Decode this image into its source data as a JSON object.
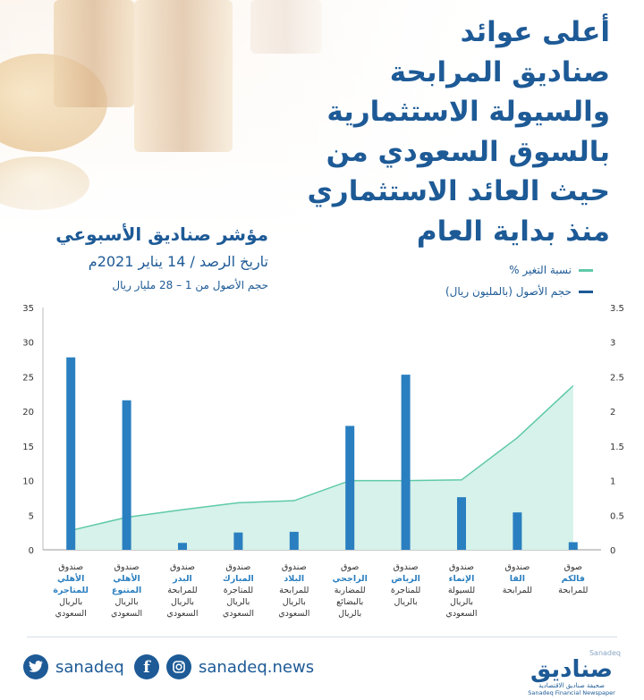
{
  "title_lines": [
    "أعلى عوائد",
    "صناديق المرابحة",
    "والسيولة الاستثمارية",
    "بالسوق السعودي من",
    "حيث العائد الاستثماري",
    "منذ بداية العام"
  ],
  "index_title": "مؤشر صناديق الأسبوعي",
  "report_date": "تاريخ الرصد / 14 يناير 2021م",
  "asset_range": "حجم الأصول من 1 – 28 مليار ريال",
  "legend": {
    "change": "نسبة التغير %",
    "assets": "حجم الأصول (بالمليون ريال)"
  },
  "colors": {
    "bars": "#2a7fc0",
    "area": "#d6f2ea",
    "line": "#5fc9a8",
    "title": "#1d5a96"
  },
  "chart_data": {
    "type": "bar+area",
    "categories": [
      {
        "lines": [
          "صندوق",
          "الأهلي",
          "للمتاجرة",
          "بالريال",
          "السعودي"
        ],
        "highlight": [
          1,
          2
        ]
      },
      {
        "lines": [
          "صندوق",
          "الأهلي",
          "المتنوع",
          "بالريال",
          "السعودي"
        ],
        "highlight": [
          1,
          2
        ]
      },
      {
        "lines": [
          "صندوق",
          "البدر",
          "للمرابحة",
          "بالريال",
          "السعودي"
        ],
        "highlight": [
          1
        ]
      },
      {
        "lines": [
          "صندوق",
          "المبارك",
          "للمتاجرة",
          "بالريال",
          "السعودي"
        ],
        "highlight": [
          1
        ]
      },
      {
        "lines": [
          "صندوق",
          "البلاد",
          "للمرابحة",
          "بالريال",
          "السعودي"
        ],
        "highlight": [
          1
        ]
      },
      {
        "lines": [
          "صوق",
          "الراجحي",
          "للمضاربة",
          "بالبضائع",
          "بالريال"
        ],
        "highlight": [
          1
        ]
      },
      {
        "lines": [
          "صندوق",
          "الرياض",
          "للمتاجرة",
          "بالريال"
        ],
        "highlight": [
          1
        ]
      },
      {
        "lines": [
          "صندوق",
          "الإنماء",
          "للسيولة",
          "بالريال",
          "السعودي"
        ],
        "highlight": [
          1
        ]
      },
      {
        "lines": [
          "صندوق",
          "الفا",
          "للمرابحة"
        ],
        "highlight": [
          1
        ]
      },
      {
        "lines": [
          "صوق",
          "فالكم",
          "للمرابحة"
        ],
        "highlight": [
          1
        ]
      }
    ],
    "series": [
      {
        "axis": "left",
        "kind": "bar",
        "values": [
          27.8,
          21.6,
          1.0,
          2.5,
          2.6,
          17.9,
          25.3,
          7.6,
          5.4,
          1.1
        ]
      },
      {
        "axis": "right",
        "kind": "area",
        "values": [
          0.28,
          0.47,
          0.58,
          0.68,
          0.71,
          1.0,
          1.0,
          1.01,
          1.62,
          2.37
        ]
      }
    ],
    "left_ticks": [
      "0",
      "5",
      "10",
      "15",
      "20",
      "25",
      "30",
      "35"
    ],
    "right_ticks": [
      "0",
      "0.5",
      "1",
      "1.5",
      "2",
      "2.5",
      "3",
      "3.5"
    ],
    "ylim_left": [
      0,
      35
    ],
    "ylim_right": [
      0,
      3.5
    ],
    "grid": false
  },
  "footer": {
    "twitter": "sanadeq",
    "news": "sanadeq.news",
    "brand_en_top": "Sanadeq",
    "brand_ar": "صناديق",
    "brand_sub": "صحيفة صناديق الاقتصادية",
    "brand_en": "Sanadeq Financial Newspaper"
  }
}
